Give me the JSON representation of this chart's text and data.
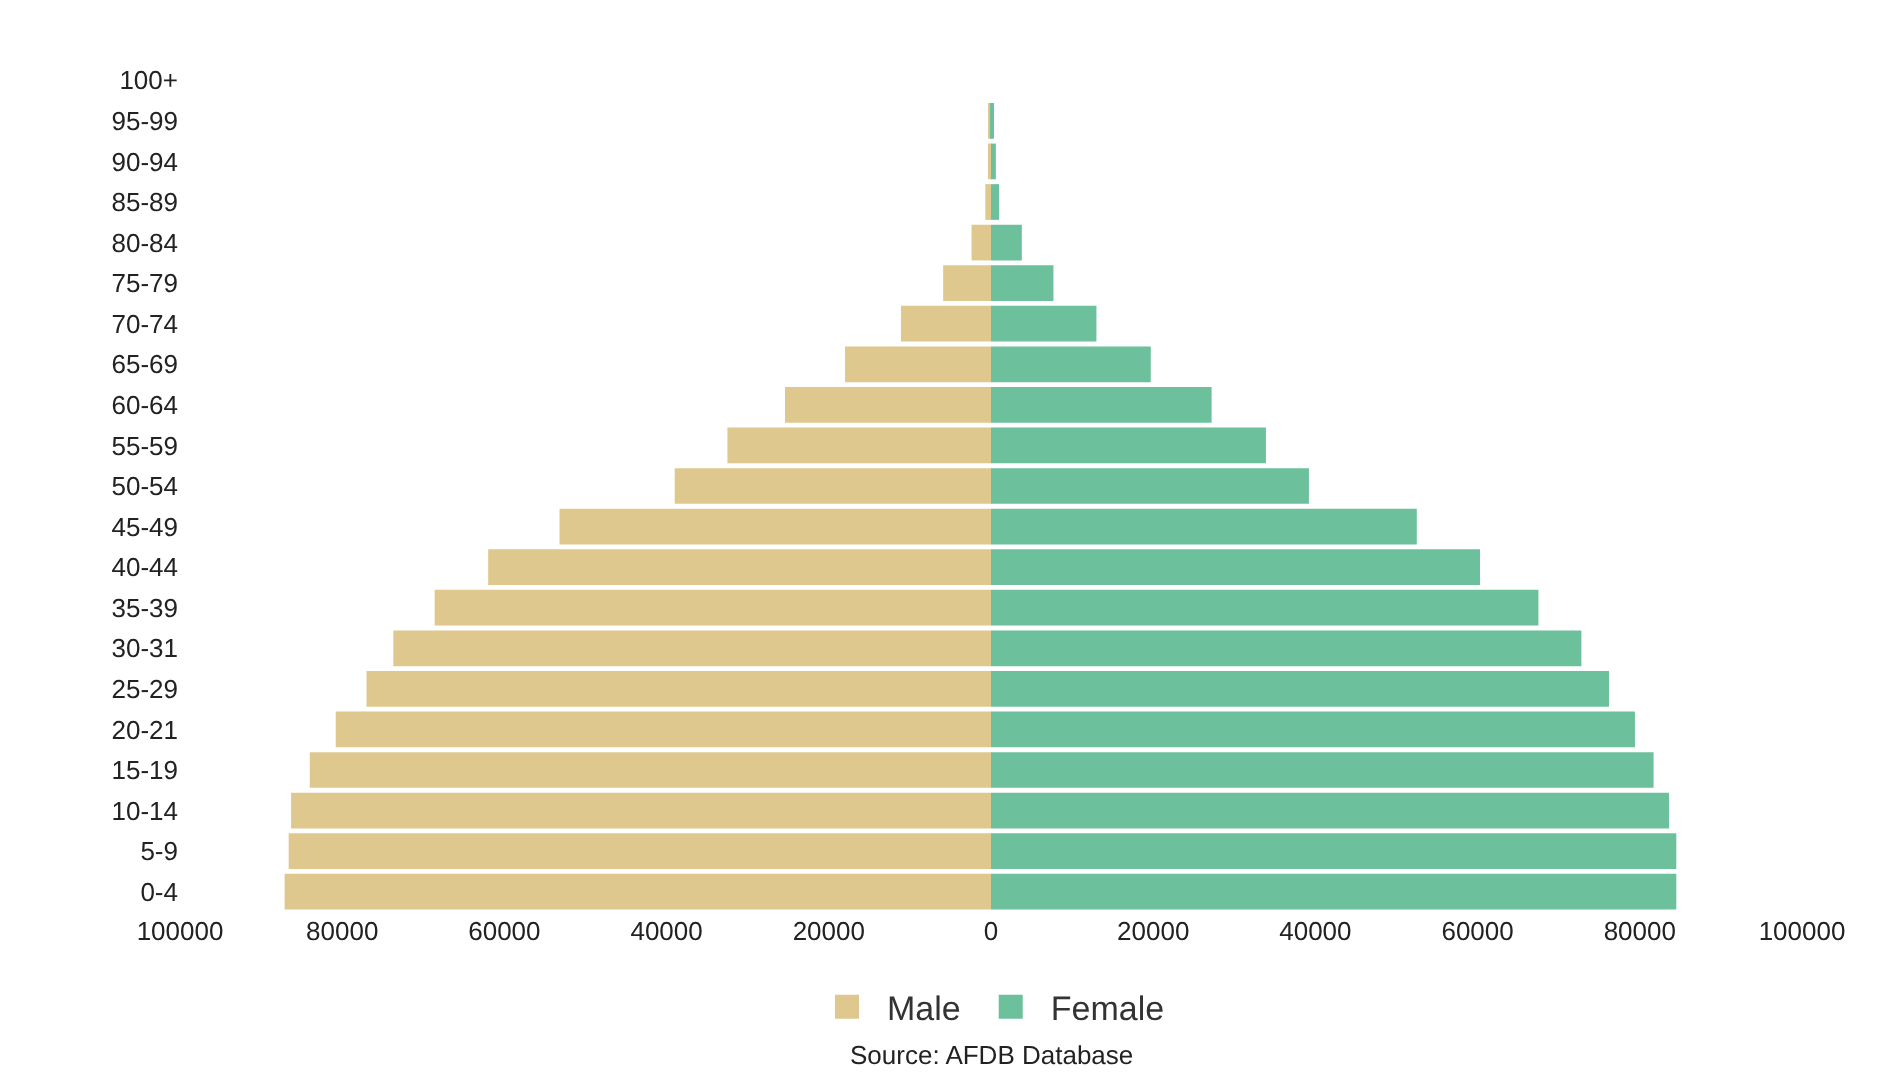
{
  "chart_data": {
    "type": "bar",
    "orientation": "horizontal",
    "annotations": [
      "Source: AFDB Database"
    ],
    "categories": [
      "100+",
      "95-99",
      "90-94",
      "85-89",
      "80-84",
      "75-79",
      "70-74",
      "65-69",
      "60-64",
      "55-59",
      "50-54",
      "45-49",
      "40-44",
      "35-39",
      "30-31",
      "25-29",
      "20-21",
      "15-19",
      "10-14",
      "5-9",
      "0-4"
    ],
    "series": [
      {
        "name": "Male",
        "color": "#dfc88e",
        "values": [
          0,
          -200,
          -300,
          -700,
          -2400,
          -5900,
          -11100,
          -18000,
          -25400,
          -32500,
          -39000,
          -53200,
          -62000,
          -68600,
          -73700,
          -77000,
          -80800,
          -84000,
          -86300,
          -86600,
          -87100
        ]
      },
      {
        "name": "Female",
        "color": "#6cc09b",
        "values": [
          0,
          300,
          600,
          1000,
          3800,
          7700,
          13000,
          19700,
          27200,
          33900,
          39200,
          52500,
          60300,
          67500,
          72800,
          76200,
          79400,
          81700,
          83600,
          84500,
          84500
        ]
      }
    ],
    "xlim": [
      -100000,
      100000
    ],
    "stacked": true,
    "xticks": [
      {
        "value": -100000,
        "label": "100000"
      },
      {
        "value": -80000,
        "label": "80000"
      },
      {
        "value": -60000,
        "label": "60000"
      },
      {
        "value": -40000,
        "label": "40000"
      },
      {
        "value": -20000,
        "label": "20000"
      },
      0,
      20000,
      40000,
      60000,
      80000,
      100000
    ],
    "grid": false,
    "legend": "bottom"
  }
}
